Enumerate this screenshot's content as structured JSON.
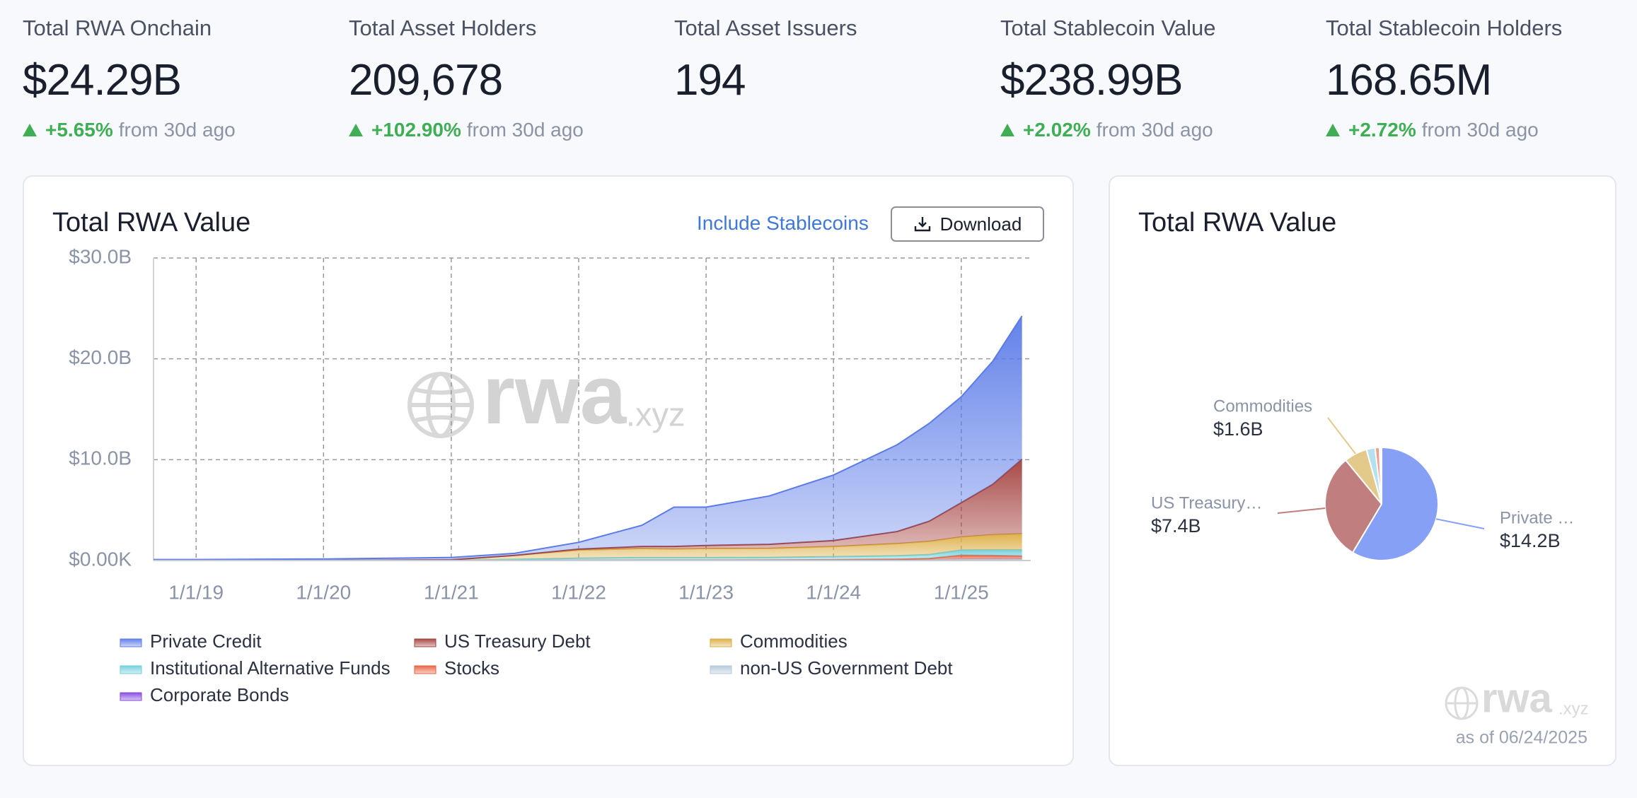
{
  "stats": [
    {
      "label": "Total RWA Onchain",
      "value": "$24.29B",
      "change": "+5.65%",
      "note": "from 30d ago"
    },
    {
      "label": "Total Asset Holders",
      "value": "209,678",
      "change": "+102.90%",
      "note": "from 30d ago"
    },
    {
      "label": "Total Asset Issuers",
      "value": "194"
    },
    {
      "label": "Total Stablecoin Value",
      "value": "$238.99B",
      "change": "+2.02%",
      "note": "from 30d ago"
    },
    {
      "label": "Total Stablecoin Holders",
      "value": "168.65M",
      "change": "+2.72%",
      "note": "from 30d ago"
    }
  ],
  "controls": {
    "toggle": "Include Stablecoins",
    "download": "Download"
  },
  "watermark": {
    "main": "rwa",
    "suffix": ".xyz"
  },
  "chart_data": [
    {
      "type": "area",
      "title": "Total RWA Value",
      "stacked": true,
      "grid": true,
      "x": [
        "9/1/18",
        "1/1/19",
        "1/1/20",
        "1/1/21",
        "7/1/21",
        "1/1/22",
        "7/1/22",
        "10/1/22",
        "1/1/23",
        "7/1/23",
        "1/1/24",
        "7/1/24",
        "10/1/24",
        "1/1/25",
        "4/1/25",
        "6/24/25"
      ],
      "xlim": [
        "9/1/18",
        "7/19/25"
      ],
      "xticks": [
        "1/1/19",
        "1/1/20",
        "1/1/21",
        "1/1/22",
        "1/1/23",
        "1/1/24",
        "1/1/25"
      ],
      "ylim": [
        0,
        30000000000
      ],
      "yticks": [
        {
          "value": 0,
          "label": "$0.00K"
        },
        {
          "value": 10000000000,
          "label": "$10.0B"
        },
        {
          "value": 20000000000,
          "label": "$20.0B"
        },
        {
          "value": 30000000000,
          "label": "$30.0B"
        }
      ],
      "series": [
        {
          "name": "Private Credit",
          "color": "#5b7be8",
          "values": [
            100000000,
            100000000,
            140000000,
            230000000,
            200000000,
            670000000,
            2100000000,
            3900000000,
            3800000000,
            4800000000,
            6500000000,
            8600000000,
            9700000000,
            10500000000,
            12200000000,
            14200000000
          ]
        },
        {
          "name": "US Treasury Debt",
          "color": "#a3403d",
          "values": [
            0,
            0,
            0,
            0,
            0,
            100000000,
            200000000,
            250000000,
            300000000,
            400000000,
            600000000,
            1200000000,
            2000000000,
            3400000000,
            5000000000,
            7400000000
          ]
        },
        {
          "name": "Commodities",
          "color": "#dcae45",
          "values": [
            0,
            0,
            0,
            50000000,
            400000000,
            800000000,
            900000000,
            850000000,
            900000000,
            900000000,
            1000000000,
            1200000000,
            1300000000,
            1300000000,
            1500000000,
            1600000000
          ]
        },
        {
          "name": "Institutional Alternative Funds",
          "color": "#6fcfdd",
          "values": [
            0,
            0,
            10000000,
            20000000,
            100000000,
            200000000,
            250000000,
            250000000,
            250000000,
            250000000,
            300000000,
            350000000,
            400000000,
            500000000,
            550000000,
            600000000
          ]
        },
        {
          "name": "Stocks",
          "color": "#e8603f",
          "values": [
            0,
            0,
            0,
            0,
            10000000,
            20000000,
            20000000,
            20000000,
            20000000,
            20000000,
            30000000,
            50000000,
            100000000,
            400000000,
            350000000,
            300000000
          ]
        },
        {
          "name": "non-US Government Debt",
          "color": "#b3c8db",
          "values": [
            0,
            0,
            0,
            0,
            0,
            0,
            0,
            0,
            0,
            10000000,
            20000000,
            30000000,
            50000000,
            80000000,
            100000000,
            100000000
          ]
        },
        {
          "name": "Corporate Bonds",
          "color": "#8547e0",
          "values": [
            0,
            0,
            0,
            0,
            0,
            10000000,
            20000000,
            20000000,
            20000000,
            20000000,
            30000000,
            40000000,
            40000000,
            50000000,
            50000000,
            50000000
          ]
        }
      ]
    },
    {
      "type": "pie",
      "title": "Total RWA Value",
      "note": "as of 06/24/2025",
      "categories": [
        "Private …",
        "US Treasury…",
        "Commodities",
        null,
        null,
        null,
        null
      ],
      "values": [
        14.2,
        7.4,
        1.6,
        0.6,
        0.3,
        0.1,
        0.05
      ],
      "value_labels": [
        "$14.2B",
        "$7.4B",
        "$1.6B",
        null,
        null,
        null,
        null
      ],
      "colors": [
        "#85a0f5",
        "#c07f7e",
        "#e3c98a",
        "#b5e0ee",
        "#f0a08a",
        "#d5dfe8",
        "#b89ae8"
      ]
    }
  ]
}
